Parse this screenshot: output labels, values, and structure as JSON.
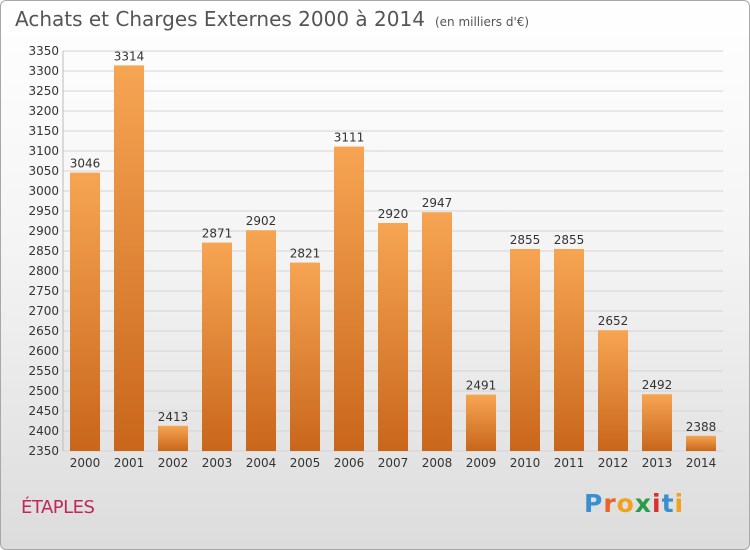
{
  "header": {
    "title": "Achats et Charges Externes 2000 à 2014",
    "unit": "(en milliers d'€)"
  },
  "footer": {
    "city": "ÉTAPLES",
    "logo_letters": [
      "P",
      "r",
      "o",
      "x",
      "i",
      "t",
      "i"
    ],
    "logo_colors": [
      "#3a8fd1",
      "#e8622a",
      "#f0a11e",
      "#2a9d4a",
      "#d8312b",
      "#3a8fd1",
      "#f0a11e"
    ]
  },
  "colors": {
    "bar_top": "#f6a553",
    "bar_bottom": "#c9661b",
    "grid": "#d4d4d4",
    "axis_text": "#333333"
  },
  "chart_data": {
    "type": "bar",
    "title": "Achats et Charges Externes 2000 à 2014",
    "subtitle": "(en milliers d'€)",
    "xlabel": "",
    "ylabel": "",
    "categories": [
      "2000",
      "2001",
      "2002",
      "2003",
      "2004",
      "2005",
      "2006",
      "2007",
      "2008",
      "2009",
      "2010",
      "2011",
      "2012",
      "2013",
      "2014"
    ],
    "values": [
      3046,
      3314,
      2413,
      2871,
      2902,
      2821,
      3111,
      2920,
      2947,
      2491,
      2855,
      2855,
      2652,
      2492,
      2388
    ],
    "ylim": [
      2350,
      3350
    ],
    "ytick_step": 50,
    "grid": true,
    "legend": "none"
  }
}
